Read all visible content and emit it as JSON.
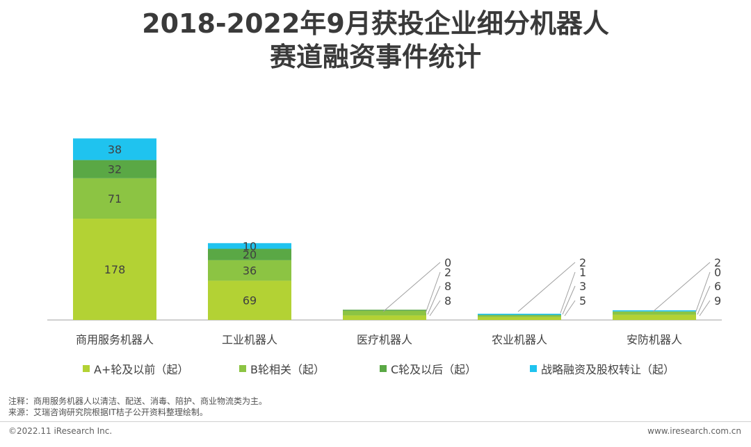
{
  "title": {
    "line1": "2018-2022年9月获投企业细分机器人",
    "line2": "赛道融资事件统计"
  },
  "colors": {
    "a_plus": "#b3d234",
    "b": "#8cc443",
    "c": "#5aa845",
    "strategic": "#1fc3ef",
    "axis": "#a0a0a0",
    "leader": "#a0a0a0"
  },
  "chart_data": {
    "type": "bar",
    "stacked": true,
    "categories": [
      "商用服务机器人",
      "工业机器人",
      "医疗机器人",
      "农业机器人",
      "安防机器人"
    ],
    "series": [
      {
        "name": "A+轮及以前（起）",
        "values": [
          178,
          69,
          8,
          5,
          9
        ]
      },
      {
        "name": "B轮相关（起）",
        "values": [
          71,
          36,
          8,
          3,
          6
        ]
      },
      {
        "name": "C轮及以后（起）",
        "values": [
          32,
          20,
          2,
          1,
          0
        ]
      },
      {
        "name": "战略融资及股权转让（起）",
        "values": [
          38,
          10,
          0,
          2,
          2
        ]
      }
    ],
    "title": "2018-2022年9月获投企业细分机器人赛道融资事件统计",
    "xlabel": "",
    "ylabel": "",
    "legend_position": "bottom",
    "grid": false
  },
  "notes": {
    "line1": "注释：商用服务机器人以清洁、配送、消毒、陪护、商业物流类为主。",
    "line2": "来源：艾瑞咨询研究院根据IT桔子公开资料整理绘制。"
  },
  "footer": {
    "copyright": "©2022.11 iResearch Inc.",
    "website": "www.iresearch.com.cn"
  }
}
